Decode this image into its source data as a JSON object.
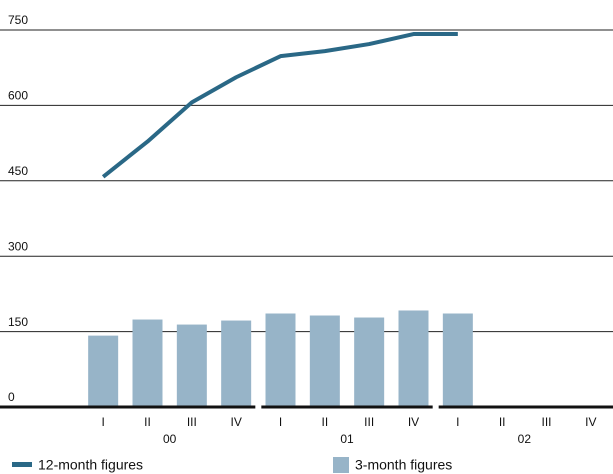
{
  "chart_data": {
    "type": "bar-line",
    "categories": [
      "I",
      "II",
      "III",
      "IV",
      "I",
      "II",
      "III",
      "IV",
      "I",
      "II",
      "III",
      "IV"
    ],
    "year_labels": [
      "00",
      "01",
      "02"
    ],
    "series": [
      {
        "name": "12-month figures",
        "type": "line",
        "color": "#2a6886",
        "values": [
          458,
          528,
          606,
          656,
          698,
          708,
          722,
          742,
          742,
          null,
          null,
          null
        ]
      },
      {
        "name": "3-month figures",
        "type": "bar",
        "color": "#97b4c8",
        "values": [
          142,
          174,
          164,
          172,
          186,
          182,
          178,
          192,
          186,
          null,
          null,
          null
        ]
      }
    ],
    "ylim": [
      0,
      750
    ],
    "yticks": [
      0,
      150,
      300,
      450,
      600,
      750
    ],
    "grid": true
  }
}
